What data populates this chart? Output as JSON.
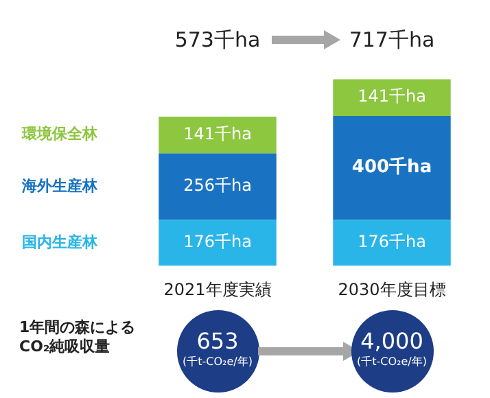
{
  "chart_data": {
    "type": "bar",
    "stacked": true,
    "categories": [
      "2021年度実績",
      "2030年度目標"
    ],
    "series": [
      {
        "name": "国内生産林",
        "color": "#29b5e8",
        "values": [
          176,
          176
        ],
        "value_labels": [
          "176千ha",
          "176千ha"
        ]
      },
      {
        "name": "海外生産林",
        "color": "#1a73c2",
        "values": [
          256,
          400
        ],
        "value_labels": [
          "256千ha",
          "400千ha"
        ]
      },
      {
        "name": "環境保全林",
        "color": "#8dc63f",
        "values": [
          141,
          141
        ],
        "value_labels": [
          "141千ha",
          "141千ha"
        ]
      }
    ],
    "totals": [
      "573千ha",
      "717千ha"
    ],
    "legend": "left",
    "tick_labels": "x",
    "grid": false,
    "annotations": [
      "1年間の森による CO₂純吸収量",
      "653",
      "(千t-CO₂e/年)",
      "4,000",
      "(千t-CO₂e/年)"
    ]
  }
}
